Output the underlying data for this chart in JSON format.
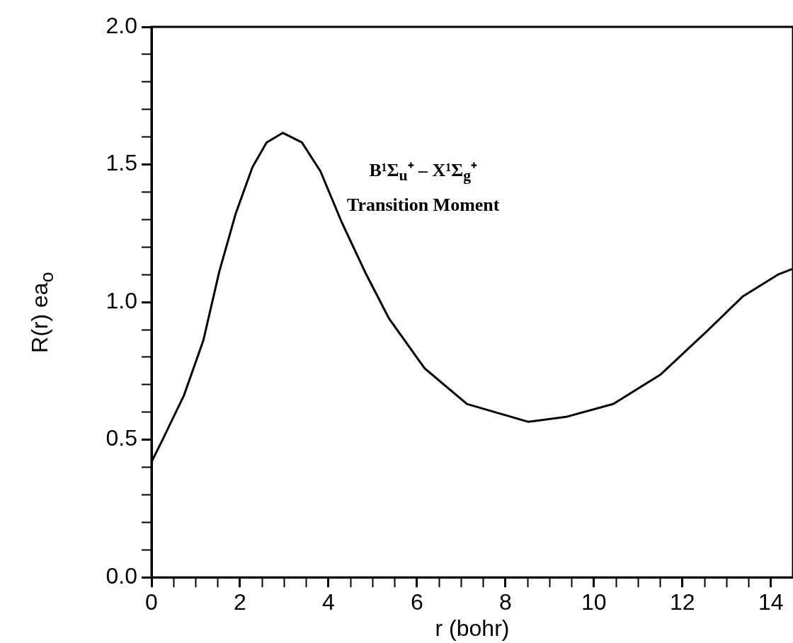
{
  "chart_data": {
    "type": "line",
    "xlabel": "r (bohr)",
    "ylabel": "R(r) ea$_{o}$",
    "annotations": [
      "B¹Σ$_{u}$⁺ – X¹Σ$_{g}$⁺",
      "Transition Moment"
    ],
    "x": [
      0,
      0.25,
      0.73,
      1.17,
      1.53,
      1.9,
      2.28,
      2.6,
      2.97,
      3.4,
      3.82,
      4.3,
      4.84,
      5.37,
      6.17,
      7.13,
      8.52,
      9.37,
      10.44,
      11.5,
      12.56,
      13.36,
      14.16,
      14.48
    ],
    "series": [
      {
        "color": "#000000",
        "values": [
          0.42,
          0.5,
          0.66,
          0.86,
          1.11,
          1.32,
          1.49,
          1.58,
          1.615,
          1.58,
          1.475,
          1.29,
          1.105,
          0.94,
          0.76,
          0.63,
          0.565,
          0.583,
          0.63,
          0.736,
          0.895,
          1.02,
          1.1,
          1.12
        ]
      }
    ],
    "xlim": [
      0,
      14.5
    ],
    "ylim": [
      0,
      2
    ],
    "xticks": [
      0,
      {
        "value": 0.5,
        "label": null
      },
      {
        "value": 1,
        "label": null
      },
      {
        "value": 1.5,
        "label": null
      },
      2,
      {
        "value": 2.5,
        "label": null
      },
      {
        "value": 3,
        "label": null
      },
      {
        "value": 3.5,
        "label": null
      },
      4,
      {
        "value": 4.5,
        "label": null
      },
      {
        "value": 5,
        "label": null
      },
      {
        "value": 5.5,
        "label": null
      },
      6,
      {
        "value": 6.5,
        "label": null
      },
      {
        "value": 7,
        "label": null
      },
      {
        "value": 7.5,
        "label": null
      },
      8,
      {
        "value": 8.5,
        "label": null
      },
      {
        "value": 9,
        "label": null
      },
      {
        "value": 9.5,
        "label": null
      },
      10,
      {
        "value": 10.5,
        "label": null
      },
      {
        "value": 11,
        "label": null
      },
      {
        "value": 11.5,
        "label": null
      },
      12,
      {
        "value": 12.5,
        "label": null
      },
      {
        "value": 13,
        "label": null
      },
      {
        "value": 13.5,
        "label": null
      },
      14
    ],
    "yticks": [
      {
        "value": 0,
        "label": "0.0"
      },
      {
        "value": 0.1,
        "label": null
      },
      {
        "value": 0.2,
        "label": null
      },
      {
        "value": 0.3,
        "label": null
      },
      {
        "value": 0.4,
        "label": null
      },
      {
        "value": 0.5,
        "label": "0.5"
      },
      {
        "value": 0.6,
        "label": null
      },
      {
        "value": 0.7,
        "label": null
      },
      {
        "value": 0.8,
        "label": null
      },
      {
        "value": 0.9,
        "label": null
      },
      {
        "value": 1,
        "label": "1.0"
      },
      {
        "value": 1.1,
        "label": null
      },
      {
        "value": 1.2,
        "label": null
      },
      {
        "value": 1.3,
        "label": null
      },
      {
        "value": 1.4,
        "label": null
      },
      {
        "value": 1.5,
        "label": "1.5"
      },
      {
        "value": 1.6,
        "label": null
      },
      {
        "value": 1.7,
        "label": null
      },
      {
        "value": 1.8,
        "label": null
      },
      {
        "value": 1.9,
        "label": null
      },
      {
        "value": 2,
        "label": "2.0"
      }
    ],
    "grid": false,
    "legend": false,
    "marker": "none",
    "line_style": "solid"
  }
}
